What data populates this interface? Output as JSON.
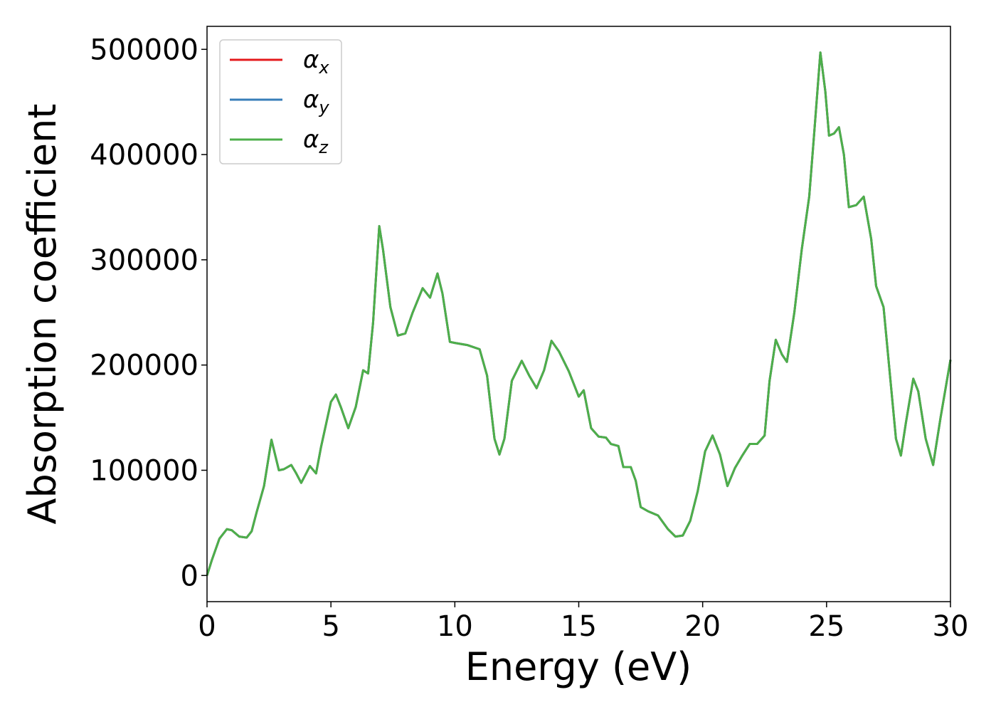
{
  "chart_data": {
    "type": "line",
    "xlabel": "Energy (eV)",
    "ylabel": "Absorption coefficient",
    "x": [
      0,
      0.2,
      0.5,
      0.8,
      1.0,
      1.3,
      1.6,
      1.8,
      2.0,
      2.3,
      2.6,
      2.9,
      3.1,
      3.4,
      3.6,
      3.8,
      4.0,
      4.15,
      4.4,
      4.6,
      5.0,
      5.2,
      5.4,
      5.7,
      6.0,
      6.3,
      6.5,
      6.7,
      6.95,
      7.1,
      7.4,
      7.7,
      8.0,
      8.3,
      8.7,
      9.0,
      9.3,
      9.5,
      9.8,
      10.0,
      10.5,
      11.0,
      11.3,
      11.6,
      11.8,
      12.0,
      12.3,
      12.7,
      13.0,
      13.3,
      13.6,
      13.9,
      14.2,
      14.6,
      15.0,
      15.2,
      15.5,
      15.8,
      16.1,
      16.3,
      16.6,
      16.8,
      17.1,
      17.3,
      17.5,
      17.8,
      18.2,
      18.6,
      18.9,
      19.2,
      19.5,
      19.8,
      20.1,
      20.4,
      20.7,
      21.0,
      21.3,
      21.6,
      21.9,
      22.2,
      22.5,
      22.7,
      22.95,
      23.2,
      23.4,
      23.7,
      24.0,
      24.3,
      24.5,
      24.75,
      24.95,
      25.1,
      25.3,
      25.5,
      25.7,
      25.9,
      26.2,
      26.5,
      26.8,
      27.0,
      27.3,
      27.6,
      27.8,
      28.0,
      28.2,
      28.5,
      28.7,
      29.0,
      29.3,
      29.6,
      30
    ],
    "series": [
      {
        "name": "αx",
        "color": "#e41a1c",
        "values": [
          0,
          15000,
          35000,
          44000,
          43000,
          37000,
          36000,
          42000,
          60000,
          85000,
          129000,
          100000,
          101000,
          105000,
          97000,
          88000,
          97000,
          104000,
          97000,
          122000,
          165000,
          172000,
          160000,
          140000,
          160000,
          195000,
          192000,
          240000,
          332000,
          310000,
          255000,
          228000,
          230000,
          250000,
          273000,
          264000,
          287000,
          268000,
          222000,
          221000,
          219000,
          215000,
          190000,
          130000,
          115000,
          130000,
          185000,
          204000,
          190000,
          178000,
          195000,
          223000,
          213000,
          194000,
          170000,
          176000,
          140000,
          132000,
          131000,
          125000,
          123000,
          103000,
          103000,
          90000,
          65000,
          61000,
          57000,
          44000,
          37000,
          38000,
          52000,
          80000,
          118000,
          133000,
          115000,
          85000,
          102000,
          114000,
          125000,
          125000,
          133000,
          185000,
          224000,
          210000,
          203000,
          250000,
          310000,
          360000,
          420000,
          497000,
          460000,
          418000,
          420000,
          426000,
          400000,
          350000,
          352000,
          360000,
          320000,
          275000,
          255000,
          180000,
          130000,
          114000,
          145000,
          187000,
          175000,
          130000,
          105000,
          150000,
          205000
        ]
      },
      {
        "name": "αy",
        "color": "#377eb8",
        "values": [
          0,
          15000,
          35000,
          44000,
          43000,
          37000,
          36000,
          42000,
          60000,
          85000,
          129000,
          100000,
          101000,
          105000,
          97000,
          88000,
          97000,
          104000,
          97000,
          122000,
          165000,
          172000,
          160000,
          140000,
          160000,
          195000,
          192000,
          240000,
          332000,
          310000,
          255000,
          228000,
          230000,
          250000,
          273000,
          264000,
          287000,
          268000,
          222000,
          221000,
          219000,
          215000,
          190000,
          130000,
          115000,
          130000,
          185000,
          204000,
          190000,
          178000,
          195000,
          223000,
          213000,
          194000,
          170000,
          176000,
          140000,
          132000,
          131000,
          125000,
          123000,
          103000,
          103000,
          90000,
          65000,
          61000,
          57000,
          44000,
          37000,
          38000,
          52000,
          80000,
          118000,
          133000,
          115000,
          85000,
          102000,
          114000,
          125000,
          125000,
          133000,
          185000,
          224000,
          210000,
          203000,
          250000,
          310000,
          360000,
          420000,
          497000,
          460000,
          418000,
          420000,
          426000,
          400000,
          350000,
          352000,
          360000,
          320000,
          275000,
          255000,
          180000,
          130000,
          114000,
          145000,
          187000,
          175000,
          130000,
          105000,
          150000,
          205000
        ]
      },
      {
        "name": "αz",
        "color": "#4daf4a",
        "values": [
          0,
          15000,
          35000,
          44000,
          43000,
          37000,
          36000,
          42000,
          60000,
          85000,
          129000,
          100000,
          101000,
          105000,
          97000,
          88000,
          97000,
          104000,
          97000,
          122000,
          165000,
          172000,
          160000,
          140000,
          160000,
          195000,
          192000,
          240000,
          332000,
          310000,
          255000,
          228000,
          230000,
          250000,
          273000,
          264000,
          287000,
          268000,
          222000,
          221000,
          219000,
          215000,
          190000,
          130000,
          115000,
          130000,
          185000,
          204000,
          190000,
          178000,
          195000,
          223000,
          213000,
          194000,
          170000,
          176000,
          140000,
          132000,
          131000,
          125000,
          123000,
          103000,
          103000,
          90000,
          65000,
          61000,
          57000,
          44000,
          37000,
          38000,
          52000,
          80000,
          118000,
          133000,
          115000,
          85000,
          102000,
          114000,
          125000,
          125000,
          133000,
          185000,
          224000,
          210000,
          203000,
          250000,
          310000,
          360000,
          420000,
          497000,
          460000,
          418000,
          420000,
          426000,
          400000,
          350000,
          352000,
          360000,
          320000,
          275000,
          255000,
          180000,
          130000,
          114000,
          145000,
          187000,
          175000,
          130000,
          105000,
          150000,
          205000
        ]
      }
    ],
    "xlim": [
      0,
      30
    ],
    "xticks": [
      0,
      5,
      10,
      15,
      20,
      25,
      30
    ],
    "ylim": [
      -24850,
      521850
    ],
    "yticks": [
      0,
      100000,
      200000,
      300000,
      400000,
      500000
    ],
    "legend": "upper left",
    "grid": false
  }
}
